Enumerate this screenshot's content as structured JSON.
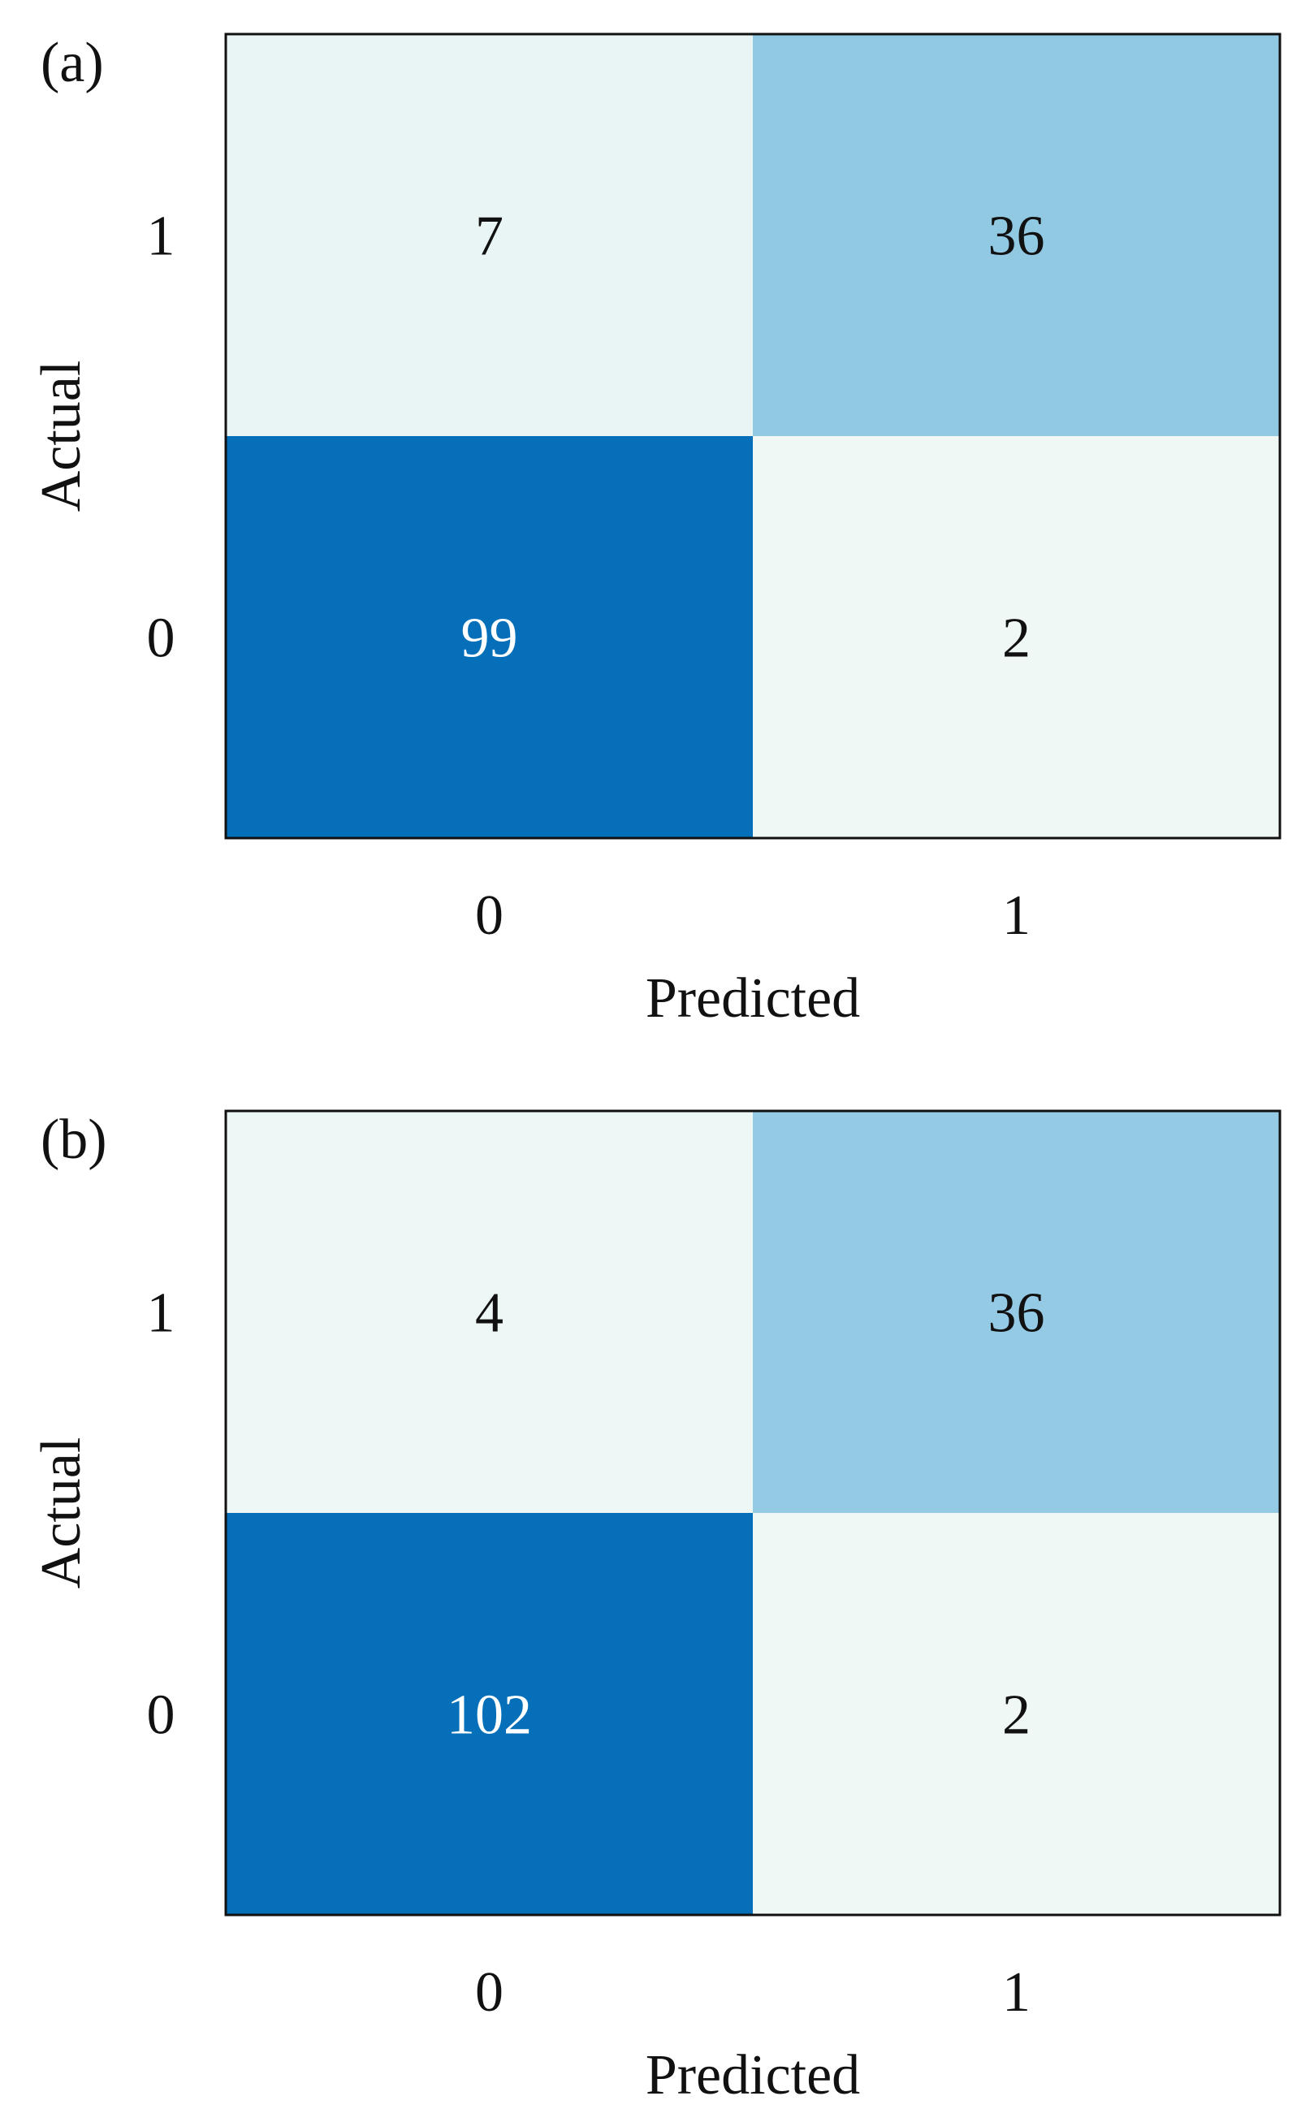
{
  "chart_data": [
    {
      "type": "heatmap",
      "panel_label": "(a)",
      "xlabel": "Predicted",
      "ylabel": "Actual",
      "x_categories": [
        "0",
        "1"
      ],
      "y_categories": [
        "1",
        "0"
      ],
      "values": [
        [
          7,
          36
        ],
        [
          99,
          2
        ]
      ],
      "colorscale": {
        "low": "#f7fcfd",
        "high": "#0570b9"
      },
      "grid": false,
      "legend": "none"
    },
    {
      "type": "heatmap",
      "panel_label": "(b)",
      "xlabel": "Predicted",
      "ylabel": "Actual",
      "x_categories": [
        "0",
        "1"
      ],
      "y_categories": [
        "1",
        "0"
      ],
      "values": [
        [
          4,
          36
        ],
        [
          102,
          2
        ]
      ],
      "colorscale": {
        "low": "#f7fcfd",
        "high": "#0570b9"
      },
      "grid": false,
      "legend": "none"
    }
  ]
}
